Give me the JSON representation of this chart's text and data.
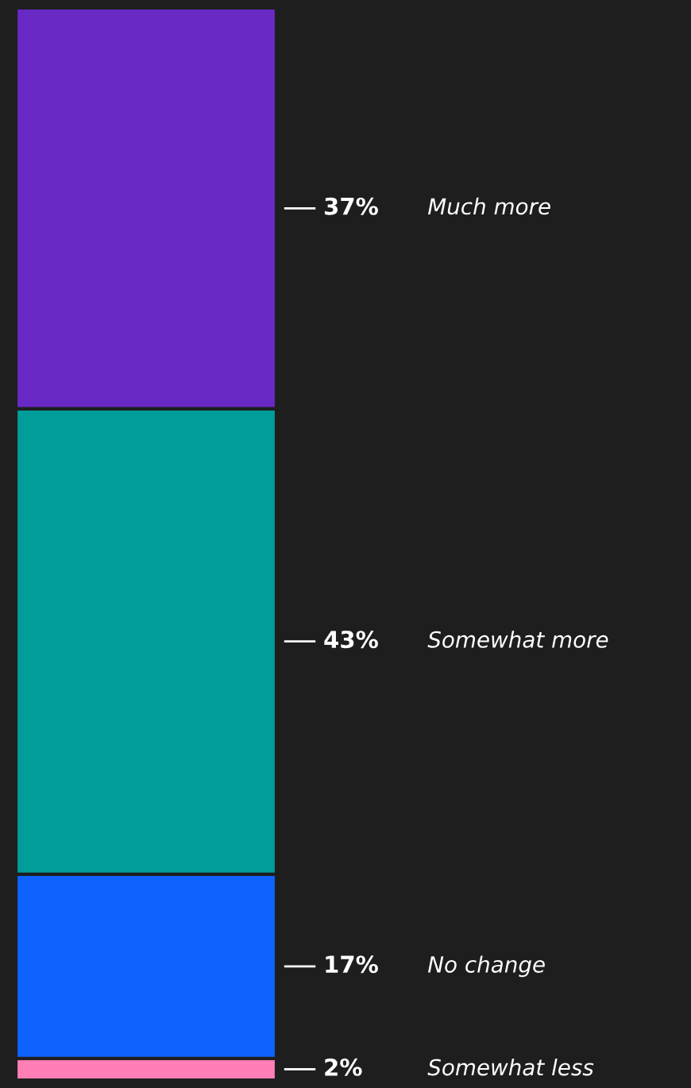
{
  "chart_data": {
    "type": "bar",
    "stacked": true,
    "categories": [
      null
    ],
    "legend": false,
    "series": [
      {
        "name": "Somewhat less",
        "color": "#ff7eb6",
        "values": [
          2
        ],
        "value_labels": [
          "2%"
        ]
      },
      {
        "name": "No change",
        "color": "#0f62fe",
        "values": [
          17
        ],
        "value_labels": [
          "17%"
        ]
      },
      {
        "name": "Somewhat more",
        "color": "#009d9a",
        "values": [
          43
        ],
        "value_labels": [
          "43%"
        ]
      },
      {
        "name": "Much more",
        "color": "#6929c4",
        "values": [
          37
        ],
        "value_labels": [
          "37%"
        ]
      }
    ]
  }
}
